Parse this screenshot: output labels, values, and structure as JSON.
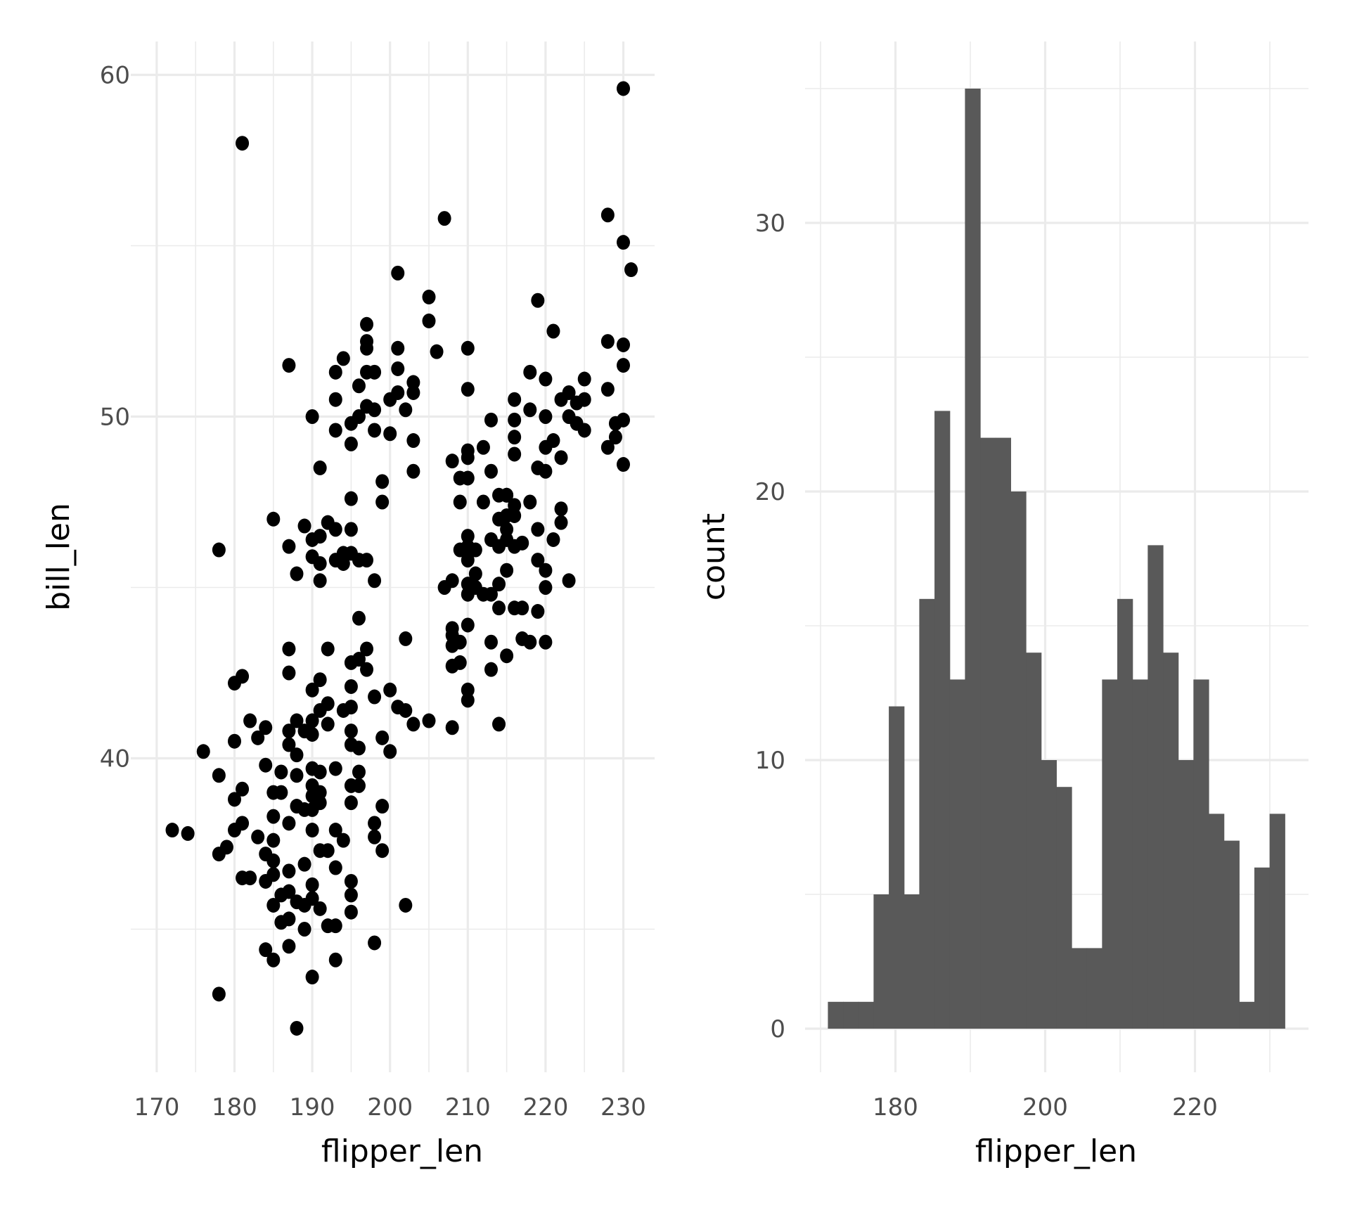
{
  "chart_data": [
    {
      "type": "scatter",
      "xlabel": "flipper_len",
      "ylabel": "bill_len",
      "xlim": [
        168,
        234
      ],
      "ylim": [
        30.8,
        61
      ],
      "xticks": [
        "170",
        "180",
        "190",
        "200",
        "210",
        "220",
        "230"
      ],
      "yticks": [
        "40",
        "50",
        "60"
      ],
      "grid": true,
      "point_color": "#000000",
      "points": [
        [
          230,
          59.6
        ],
        [
          181,
          58.0
        ],
        [
          207,
          55.8
        ],
        [
          228,
          55.9
        ],
        [
          230,
          55.1
        ],
        [
          231,
          54.3
        ],
        [
          201,
          54.2
        ],
        [
          205,
          53.5
        ],
        [
          205,
          52.8
        ],
        [
          219,
          53.4
        ],
        [
          221,
          52.5
        ],
        [
          197,
          52.7
        ],
        [
          197,
          52.2
        ],
        [
          197,
          52.0
        ],
        [
          187,
          51.5
        ],
        [
          194,
          51.7
        ],
        [
          193,
          51.3
        ],
        [
          196,
          50.9
        ],
        [
          193,
          50.5
        ],
        [
          190,
          50.0
        ],
        [
          198,
          51.3
        ],
        [
          197,
          51.3
        ],
        [
          201,
          52.0
        ],
        [
          201,
          51.4
        ],
        [
          203,
          51.0
        ],
        [
          203,
          50.7
        ],
        [
          200,
          50.5
        ],
        [
          201,
          50.7
        ],
        [
          202,
          50.2
        ],
        [
          197,
          50.3
        ],
        [
          198,
          50.2
        ],
        [
          196,
          50.0
        ],
        [
          195,
          49.8
        ],
        [
          193,
          49.6
        ],
        [
          198,
          49.6
        ],
        [
          195,
          49.2
        ],
        [
          200,
          49.5
        ],
        [
          203,
          49.3
        ],
        [
          206,
          51.9
        ],
        [
          210,
          52.0
        ],
        [
          210,
          50.8
        ],
        [
          191,
          48.5
        ],
        [
          203,
          48.4
        ],
        [
          199,
          48.1
        ],
        [
          199,
          47.5
        ],
        [
          195,
          47.6
        ],
        [
          208,
          48.7
        ],
        [
          210,
          49.0
        ],
        [
          210,
          48.8
        ],
        [
          212,
          49.1
        ],
        [
          213,
          49.9
        ],
        [
          213,
          48.4
        ],
        [
          209,
          48.2
        ],
        [
          210,
          48.2
        ],
        [
          209,
          47.5
        ],
        [
          212,
          47.5
        ],
        [
          215,
          47.7
        ],
        [
          216,
          49.9
        ],
        [
          216,
          49.4
        ],
        [
          216,
          48.9
        ],
        [
          218,
          47.5
        ],
        [
          218,
          51.3
        ],
        [
          220,
          51.1
        ],
        [
          218,
          50.2
        ],
        [
          220,
          50.0
        ],
        [
          220,
          49.1
        ],
        [
          219,
          48.5
        ],
        [
          220,
          48.4
        ],
        [
          222,
          48.8
        ],
        [
          221,
          49.3
        ],
        [
          222,
          47.3
        ],
        [
          222,
          46.9
        ],
        [
          219,
          46.7
        ],
        [
          216,
          50.5
        ],
        [
          222,
          50.5
        ],
        [
          223,
          50.7
        ],
        [
          223,
          50.0
        ],
        [
          224,
          50.4
        ],
        [
          225,
          51.1
        ],
        [
          225,
          50.5
        ],
        [
          224,
          49.8
        ],
        [
          225,
          49.6
        ],
        [
          228,
          50.8
        ],
        [
          228,
          52.2
        ],
        [
          230,
          52.1
        ],
        [
          230,
          51.5
        ],
        [
          230,
          49.9
        ],
        [
          229,
          49.8
        ],
        [
          228,
          49.1
        ],
        [
          229,
          49.4
        ],
        [
          230,
          48.6
        ],
        [
          185,
          47.0
        ],
        [
          189,
          46.8
        ],
        [
          192,
          46.9
        ],
        [
          193,
          46.7
        ],
        [
          195,
          46.7
        ],
        [
          191,
          46.5
        ],
        [
          190,
          46.4
        ],
        [
          187,
          46.2
        ],
        [
          190,
          45.9
        ],
        [
          191,
          45.7
        ],
        [
          188,
          45.4
        ],
        [
          191,
          45.2
        ],
        [
          193,
          45.8
        ],
        [
          194,
          46.0
        ],
        [
          195,
          46.0
        ],
        [
          196,
          45.8
        ],
        [
          194,
          45.7
        ],
        [
          197,
          45.8
        ],
        [
          198,
          45.2
        ],
        [
          178,
          46.1
        ],
        [
          196,
          44.1
        ],
        [
          202,
          43.5
        ],
        [
          187,
          43.2
        ],
        [
          192,
          43.2
        ],
        [
          197,
          43.2
        ],
        [
          196,
          42.9
        ],
        [
          195,
          42.8
        ],
        [
          197,
          42.6
        ],
        [
          187,
          42.5
        ],
        [
          191,
          42.3
        ],
        [
          195,
          42.1
        ],
        [
          190,
          42.0
        ],
        [
          198,
          41.8
        ],
        [
          200,
          42.0
        ],
        [
          181,
          42.4
        ],
        [
          180,
          42.2
        ],
        [
          201,
          41.5
        ],
        [
          202,
          41.4
        ],
        [
          205,
          41.1
        ],
        [
          203,
          41.0
        ],
        [
          192,
          41.6
        ],
        [
          195,
          41.5
        ],
        [
          194,
          41.4
        ],
        [
          191,
          41.4
        ],
        [
          190,
          41.1
        ],
        [
          188,
          41.1
        ],
        [
          182,
          41.1
        ],
        [
          184,
          40.9
        ],
        [
          183,
          40.6
        ],
        [
          180,
          40.5
        ],
        [
          187,
          40.8
        ],
        [
          189,
          40.8
        ],
        [
          192,
          41.0
        ],
        [
          195,
          40.8
        ],
        [
          195,
          40.4
        ],
        [
          199,
          40.6
        ],
        [
          196,
          40.3
        ],
        [
          200,
          40.2
        ],
        [
          187,
          40.4
        ],
        [
          190,
          40.7
        ],
        [
          176,
          40.2
        ],
        [
          188,
          40.1
        ],
        [
          184,
          39.8
        ],
        [
          178,
          39.5
        ],
        [
          186,
          39.6
        ],
        [
          190,
          39.7
        ],
        [
          191,
          39.6
        ],
        [
          193,
          39.7
        ],
        [
          196,
          39.6
        ],
        [
          188,
          39.5
        ],
        [
          190,
          39.2
        ],
        [
          195,
          39.2
        ],
        [
          196,
          39.2
        ],
        [
          181,
          39.1
        ],
        [
          180,
          38.8
        ],
        [
          185,
          39.0
        ],
        [
          186,
          39.0
        ],
        [
          190,
          38.9
        ],
        [
          191,
          39.0
        ],
        [
          191,
          38.7
        ],
        [
          188,
          38.6
        ],
        [
          189,
          38.5
        ],
        [
          190,
          38.5
        ],
        [
          195,
          38.7
        ],
        [
          199,
          38.6
        ],
        [
          185,
          38.3
        ],
        [
          187,
          38.1
        ],
        [
          181,
          38.1
        ],
        [
          172,
          37.9
        ],
        [
          174,
          37.8
        ],
        [
          180,
          37.9
        ],
        [
          190,
          37.9
        ],
        [
          193,
          37.9
        ],
        [
          194,
          37.6
        ],
        [
          198,
          38.1
        ],
        [
          198,
          37.7
        ],
        [
          199,
          37.3
        ],
        [
          183,
          37.7
        ],
        [
          185,
          37.6
        ],
        [
          179,
          37.4
        ],
        [
          178,
          37.2
        ],
        [
          184,
          37.2
        ],
        [
          185,
          37.0
        ],
        [
          191,
          37.3
        ],
        [
          192,
          37.3
        ],
        [
          187,
          36.7
        ],
        [
          189,
          36.9
        ],
        [
          193,
          36.8
        ],
        [
          181,
          36.5
        ],
        [
          182,
          36.5
        ],
        [
          184,
          36.4
        ],
        [
          185,
          36.6
        ],
        [
          187,
          36.1
        ],
        [
          186,
          36.0
        ],
        [
          190,
          36.3
        ],
        [
          190,
          35.9
        ],
        [
          195,
          36.4
        ],
        [
          195,
          36.0
        ],
        [
          188,
          35.8
        ],
        [
          185,
          35.7
        ],
        [
          189,
          35.7
        ],
        [
          191,
          35.6
        ],
        [
          195,
          35.5
        ],
        [
          202,
          35.7
        ],
        [
          186,
          35.2
        ],
        [
          187,
          35.3
        ],
        [
          189,
          35.0
        ],
        [
          192,
          35.1
        ],
        [
          193,
          35.1
        ],
        [
          184,
          34.4
        ],
        [
          187,
          34.5
        ],
        [
          185,
          34.1
        ],
        [
          193,
          34.1
        ],
        [
          198,
          34.6
        ],
        [
          190,
          33.6
        ],
        [
          178,
          33.1
        ],
        [
          188,
          32.1
        ],
        [
          208,
          40.9
        ],
        [
          214,
          41.0
        ],
        [
          210,
          42.0
        ],
        [
          210,
          41.7
        ],
        [
          213,
          42.6
        ],
        [
          208,
          42.7
        ],
        [
          209,
          42.8
        ],
        [
          215,
          43.0
        ],
        [
          208,
          43.3
        ],
        [
          208,
          43.6
        ],
        [
          209,
          43.4
        ],
        [
          208,
          43.8
        ],
        [
          210,
          43.9
        ],
        [
          213,
          43.4
        ],
        [
          217,
          43.5
        ],
        [
          218,
          43.4
        ],
        [
          220,
          43.4
        ],
        [
          219,
          44.3
        ],
        [
          216,
          44.4
        ],
        [
          217,
          44.4
        ],
        [
          214,
          44.4
        ],
        [
          207,
          45.0
        ],
        [
          208,
          45.2
        ],
        [
          210,
          45.1
        ],
        [
          210,
          44.8
        ],
        [
          211,
          45.0
        ],
        [
          212,
          44.8
        ],
        [
          213,
          44.8
        ],
        [
          214,
          45.1
        ],
        [
          215,
          45.5
        ],
        [
          211,
          45.4
        ],
        [
          210,
          45.8
        ],
        [
          209,
          46.1
        ],
        [
          210,
          46.5
        ],
        [
          210,
          46.2
        ],
        [
          211,
          46.1
        ],
        [
          213,
          46.4
        ],
        [
          214,
          46.2
        ],
        [
          215,
          46.4
        ],
        [
          216,
          46.2
        ],
        [
          217,
          46.3
        ],
        [
          215,
          46.7
        ],
        [
          216,
          47.1
        ],
        [
          215,
          47.1
        ],
        [
          214,
          47.0
        ],
        [
          214,
          47.7
        ],
        [
          215,
          47.7
        ],
        [
          216,
          47.4
        ],
        [
          219,
          45.8
        ],
        [
          220,
          45.5
        ],
        [
          220,
          45.0
        ],
        [
          221,
          46.4
        ],
        [
          223,
          45.2
        ]
      ]
    },
    {
      "type": "bar",
      "subtype": "histogram",
      "xlabel": "flipper_len",
      "ylabel": "count",
      "xlim": [
        168,
        234
      ],
      "ylim": [
        -1.8,
        35.5
      ],
      "xticks": [
        "180",
        "200",
        "220"
      ],
      "yticks": [
        "0",
        "10",
        "20",
        "30"
      ],
      "grid": true,
      "bar_color": "#595959",
      "bin_start": 170.98,
      "bin_width": 2.034,
      "counts": [
        1,
        1,
        1,
        5,
        12,
        5,
        16,
        23,
        13,
        35,
        22,
        22,
        20,
        14,
        10,
        9,
        3,
        3,
        13,
        16,
        13,
        18,
        14,
        10,
        13,
        8,
        7,
        1,
        6,
        8
      ]
    }
  ]
}
